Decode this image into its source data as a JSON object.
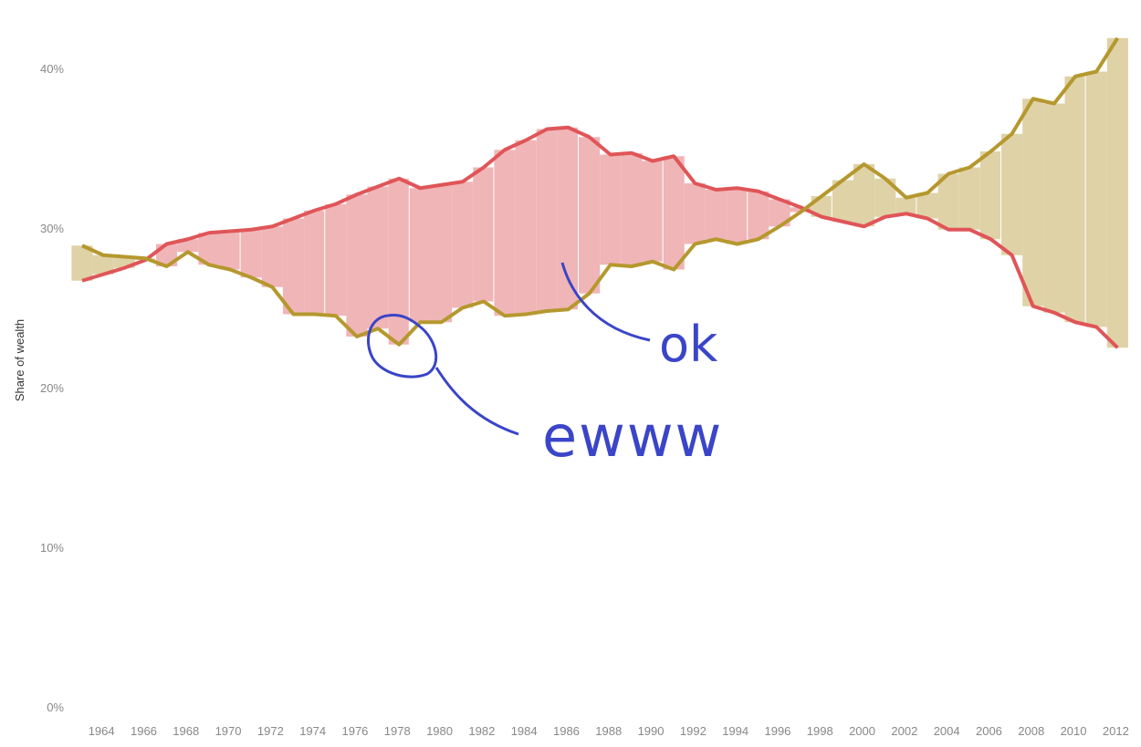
{
  "chart_data": {
    "type": "line",
    "title": "",
    "xlabel": "",
    "ylabel": "Share of wealth",
    "ylim": [
      0,
      42
    ],
    "y_ticks": [
      "0%",
      "10%",
      "20%",
      "30%",
      "40%"
    ],
    "y_tick_values": [
      0,
      10,
      20,
      30,
      40
    ],
    "x_ticks": [
      "1964",
      "1966",
      "1968",
      "1970",
      "1972",
      "1974",
      "1976",
      "1978",
      "1980",
      "1982",
      "1984",
      "1986",
      "1988",
      "1990",
      "1992",
      "1994",
      "1996",
      "1998",
      "2000",
      "2002",
      "2004",
      "2006",
      "2008",
      "2010",
      "2012"
    ],
    "grid": false,
    "x": [
      1963,
      1964,
      1965,
      1966,
      1967,
      1968,
      1969,
      1970,
      1971,
      1972,
      1973,
      1974,
      1975,
      1976,
      1977,
      1978,
      1979,
      1980,
      1981,
      1982,
      1983,
      1984,
      1985,
      1986,
      1987,
      1988,
      1989,
      1990,
      1991,
      1992,
      1993,
      1994,
      1995,
      1996,
      1997,
      1998,
      1999,
      2000,
      2001,
      2002,
      2003,
      2004,
      2005,
      2006,
      2007,
      2008,
      2009,
      2010,
      2011,
      2012
    ],
    "series": [
      {
        "color": "#e05558",
        "values": [
          26.7,
          27.1,
          27.5,
          28.0,
          29.0,
          29.3,
          29.7,
          29.8,
          29.9,
          30.1,
          30.6,
          31.1,
          31.5,
          32.1,
          32.6,
          33.1,
          32.5,
          32.7,
          32.9,
          33.8,
          34.9,
          35.5,
          36.2,
          36.3,
          35.7,
          34.6,
          34.7,
          34.2,
          34.5,
          32.8,
          32.4,
          32.5,
          32.3,
          31.8,
          31.3,
          30.7,
          30.4,
          30.1,
          30.7,
          30.9,
          30.6,
          29.9,
          29.9,
          29.3,
          28.3,
          25.1,
          24.7,
          24.1,
          23.8,
          22.5
        ]
      },
      {
        "color": "#b5982e",
        "values": [
          28.9,
          28.3,
          28.2,
          28.1,
          27.6,
          28.5,
          27.7,
          27.4,
          26.9,
          26.3,
          24.6,
          24.6,
          24.5,
          23.2,
          23.7,
          22.7,
          24.1,
          24.1,
          25.0,
          25.4,
          24.5,
          24.6,
          24.8,
          24.9,
          25.9,
          27.7,
          27.6,
          27.9,
          27.4,
          29.0,
          29.3,
          29.0,
          29.3,
          30.1,
          31.0,
          32.0,
          33.0,
          34.0,
          33.1,
          31.9,
          32.2,
          33.4,
          33.8,
          34.8,
          35.9,
          38.1,
          37.8,
          39.5,
          39.8,
          41.9
        ]
      }
    ],
    "fill_colors": {
      "first_higher": "#f0b5b7",
      "second_higher": "#dfd2a7"
    },
    "annotations": [
      "ok",
      "ewww"
    ],
    "annotation_color": "#3a45c8"
  }
}
